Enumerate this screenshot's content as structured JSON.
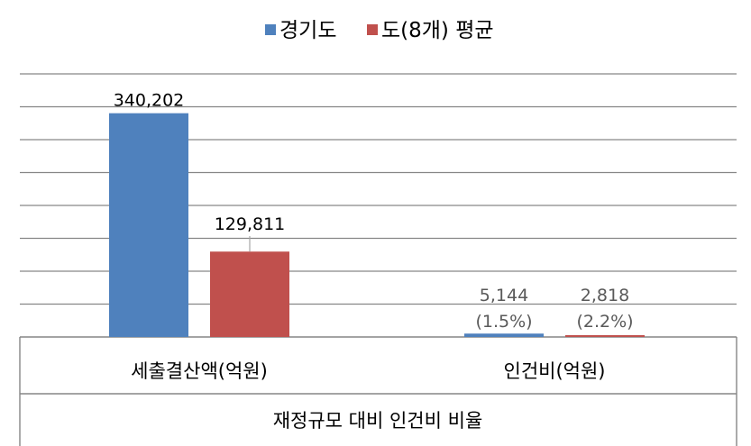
{
  "chart_data": {
    "type": "bar",
    "categories": [
      "세출결산액(억원)",
      "인건비(억원)"
    ],
    "series": [
      {
        "name": "경기도",
        "color": "#4F81BD",
        "values": [
          340202,
          5144
        ],
        "labels": [
          "340,202",
          "5,144"
        ],
        "sublabels": [
          "",
          "(1.5%)"
        ]
      },
      {
        "name": "도(8개) 평균",
        "color": "#C0504D",
        "values": [
          129811,
          2818
        ],
        "labels": [
          "129,811",
          "2,818"
        ],
        "sublabels": [
          "",
          "(2.2%)"
        ]
      }
    ],
    "xlabel": "재정규모 대비 인건비 비율",
    "ylim": [
      0,
      400000
    ],
    "grid": true,
    "legend_position": "top-center",
    "label_color_default": "#000000",
    "label_color_small": "#595959"
  }
}
